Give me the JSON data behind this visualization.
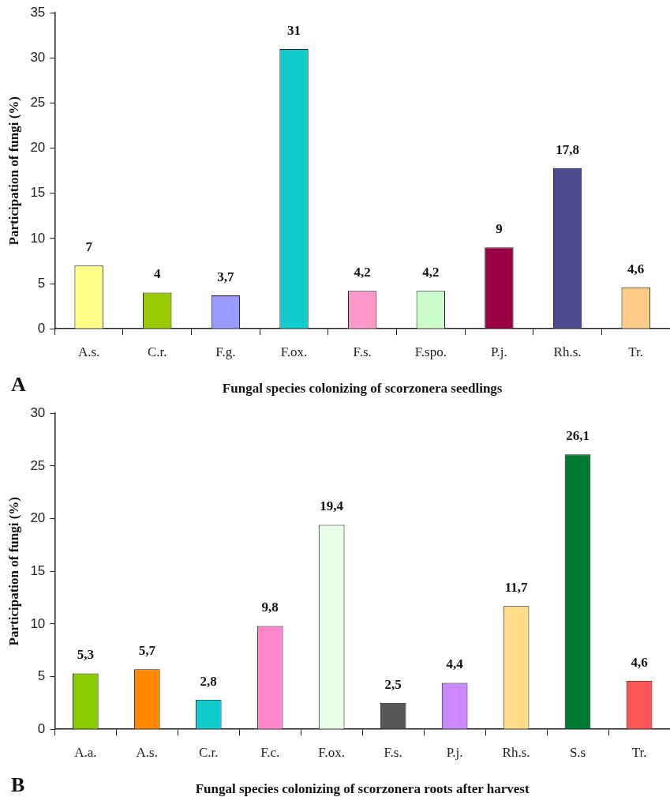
{
  "chart_data": [
    {
      "type": "bar",
      "xlabel": "Fungal species colonizing of scorzonera seedlings",
      "ylabel": "Participation of fungi (%)",
      "annotations": [
        "A"
      ],
      "categories": [
        "A.s.",
        "C.r.",
        "F.g.",
        "F.ox.",
        "F.s.",
        "F.spo.",
        "P.j.",
        "Rh.s.",
        "Tr."
      ],
      "values": [
        7,
        4,
        3.7,
        31,
        4.2,
        4.2,
        9,
        17.8,
        4.6
      ],
      "value_labels": [
        "7",
        "4",
        "3,7",
        "31",
        "4,2",
        "4,2",
        "9",
        "17,8",
        "4,6"
      ],
      "colors": [
        "#ffff88",
        "#99cc00",
        "#9999ff",
        "#11cccc",
        "#ff99cc",
        "#ccffcc",
        "#990044",
        "#4b4b8f",
        "#ffcc88"
      ],
      "ylim": [
        0,
        35
      ],
      "yticks": [
        0,
        5,
        10,
        15,
        20,
        25,
        30,
        35
      ],
      "grid": false,
      "legend": false
    },
    {
      "type": "bar",
      "xlabel": "Fungal species colonizing of scorzonera roots after harvest",
      "ylabel": "Participation of fungi (%)",
      "annotations": [
        "B"
      ],
      "categories": [
        "A.a.",
        "A.s.",
        "C.r.",
        "F.c.",
        "F.ox.",
        "F.s.",
        "P.j.",
        "Rh.s.",
        "S.s",
        "Tr."
      ],
      "values": [
        5.3,
        5.7,
        2.8,
        9.8,
        19.4,
        2.5,
        4.4,
        11.7,
        26.1,
        4.6
      ],
      "value_labels": [
        "5,3",
        "5,7",
        "2,8",
        "9,8",
        "19,4",
        "2,5",
        "4,4",
        "11,7",
        "26,1",
        "4,6"
      ],
      "colors": [
        "#88cc00",
        "#ff8800",
        "#11cccc",
        "#ff88cc",
        "#e6ffe6",
        "#555555",
        "#cc88ff",
        "#ffdd88",
        "#007a33",
        "#ff5555"
      ],
      "ylim": [
        0,
        30
      ],
      "yticks": [
        0,
        5,
        10,
        15,
        20,
        25,
        30
      ],
      "grid": false,
      "legend": false
    }
  ]
}
